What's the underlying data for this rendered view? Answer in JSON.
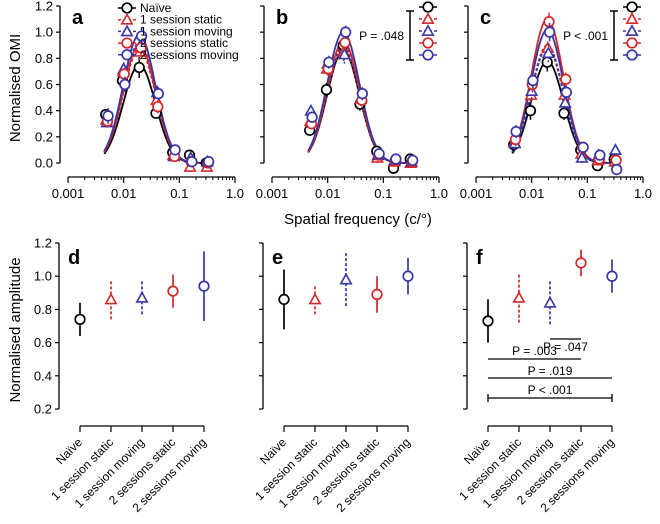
{
  "colors": {
    "naive": "#000000",
    "static": "#d62828",
    "moving": "#3636a8",
    "static2": "#d62828",
    "moving2": "#3636a8"
  },
  "legend": [
    {
      "label": "Naïve",
      "marker": "circle",
      "color": "#000000",
      "dash": false
    },
    {
      "label": "1 session static",
      "marker": "triangle",
      "color": "#d62828",
      "dash": true
    },
    {
      "label": "1 session moving",
      "marker": "triangle",
      "color": "#3636a8",
      "dash": true
    },
    {
      "label": "2 sessions static",
      "marker": "circle",
      "color": "#d62828",
      "dash": false
    },
    {
      "label": "2 sessions moving",
      "marker": "circle",
      "color": "#3636a8",
      "dash": false
    }
  ],
  "top_xlabel": "Spatial frequency (c/°)",
  "top_ylabel": "Normalised OMI",
  "bottom_ylabel": "Normalised amplitude",
  "chart_data": [
    {
      "panel": "a",
      "type": "line",
      "xscale": "log",
      "xlim": [
        0.001,
        1.0
      ],
      "ylim": [
        0,
        1.2
      ],
      "xticks": [
        "0.001",
        "0.01",
        "0.1",
        "1.0"
      ],
      "yticks": [
        "0.0",
        "0.2",
        "0.4",
        "0.6",
        "0.8",
        "1.0",
        "1.2"
      ],
      "x": [
        0.005,
        0.01,
        0.02,
        0.04,
        0.08,
        0.16,
        0.32
      ],
      "series": [
        {
          "name": "Naïve",
          "values": [
            0.37,
            0.63,
            0.73,
            0.38,
            0.08,
            0.06,
            0.0
          ],
          "err": [
            0.04,
            0.06,
            0.08,
            0.04,
            0.04,
            0.03,
            0.03
          ],
          "peak": 0.75
        },
        {
          "name": "1 session static",
          "values": [
            0.33,
            0.7,
            0.85,
            0.48,
            0.06,
            -0.03,
            -0.03
          ],
          "err": [
            0.04,
            0.05,
            0.06,
            0.05,
            0.04,
            0.03,
            0.03
          ],
          "peak": 0.87
        },
        {
          "name": "1 session moving",
          "values": [
            0.31,
            0.72,
            0.9,
            0.54,
            0.05,
            0.04,
            0.01
          ],
          "err": [
            0.04,
            0.05,
            0.06,
            0.05,
            0.04,
            0.03,
            0.03
          ],
          "peak": 0.92
        },
        {
          "name": "2 sessions static",
          "values": [
            0.32,
            0.68,
            0.88,
            0.43,
            0.05,
            0.01,
            0.0
          ],
          "err": [
            0.04,
            0.05,
            0.06,
            0.05,
            0.04,
            0.03,
            0.03
          ],
          "peak": 0.9
        },
        {
          "name": "2 sessions moving",
          "values": [
            0.36,
            0.6,
            0.97,
            0.53,
            0.1,
            0.01,
            0.01
          ],
          "err": [
            0.06,
            0.06,
            0.07,
            0.05,
            0.04,
            0.03,
            0.03
          ],
          "peak": 0.98
        }
      ]
    },
    {
      "panel": "b",
      "type": "line",
      "xscale": "log",
      "xlim": [
        0.001,
        1.0
      ],
      "ylim": [
        0,
        1.2
      ],
      "xticks": [
        "0.001",
        "0.01",
        "0.1",
        "1.0"
      ],
      "x": [
        0.005,
        0.01,
        0.02,
        0.04,
        0.08,
        0.16,
        0.32
      ],
      "annotation": "P = .048",
      "series": [
        {
          "name": "Naïve",
          "values": [
            0.25,
            0.56,
            0.9,
            0.45,
            0.09,
            -0.04,
            0.03
          ],
          "err": [
            0.04,
            0.05,
            0.06,
            0.05,
            0.04,
            0.04,
            0.04
          ],
          "peak": 0.86
        },
        {
          "name": "1 session static",
          "values": [
            0.32,
            0.72,
            0.85,
            0.49,
            0.04,
            0.01,
            0.0
          ],
          "err": [
            0.04,
            0.05,
            0.07,
            0.05,
            0.04,
            0.04,
            0.03
          ],
          "peak": 0.88
        },
        {
          "name": "1 session moving",
          "values": [
            0.4,
            0.76,
            0.83,
            0.5,
            0.06,
            0.02,
            0.01
          ],
          "err": [
            0.04,
            0.05,
            0.07,
            0.05,
            0.04,
            0.04,
            0.03
          ],
          "peak": 0.9
        },
        {
          "name": "2 sessions static",
          "values": [
            0.3,
            0.72,
            0.92,
            0.48,
            0.06,
            0.02,
            0.01
          ],
          "err": [
            0.04,
            0.05,
            0.06,
            0.05,
            0.04,
            0.04,
            0.03
          ],
          "peak": 0.93
        },
        {
          "name": "2 sessions moving",
          "values": [
            0.35,
            0.77,
            1.0,
            0.53,
            0.07,
            0.03,
            0.02
          ],
          "err": [
            0.04,
            0.05,
            0.05,
            0.05,
            0.04,
            0.04,
            0.03
          ],
          "peak": 1.0
        }
      ]
    },
    {
      "panel": "c",
      "type": "line",
      "xscale": "log",
      "xlim": [
        0.001,
        1.0
      ],
      "ylim": [
        0,
        1.2
      ],
      "xticks": [
        "0.001",
        "0.01",
        "0.1",
        "1.0"
      ],
      "x": [
        0.005,
        0.01,
        0.02,
        0.04,
        0.08,
        0.16,
        0.32
      ],
      "annotation": "P < .001",
      "series": [
        {
          "name": "Naïve",
          "values": [
            0.14,
            0.4,
            0.77,
            0.38,
            0.1,
            -0.02,
            0.03
          ],
          "err": [
            0.05,
            0.07,
            0.07,
            0.05,
            0.04,
            0.04,
            0.04
          ],
          "peak": 0.78
        },
        {
          "name": "1 session static",
          "values": [
            0.16,
            0.52,
            0.88,
            0.52,
            0.07,
            0.02,
            0.01
          ],
          "err": [
            0.05,
            0.06,
            0.06,
            0.05,
            0.04,
            0.04,
            0.04
          ],
          "peak": 0.9
        },
        {
          "name": "1 session moving",
          "values": [
            0.15,
            0.55,
            0.84,
            0.46,
            0.04,
            0.06,
            0.1
          ],
          "err": [
            0.05,
            0.06,
            0.07,
            0.05,
            0.04,
            0.04,
            0.04
          ],
          "peak": 0.88
        },
        {
          "name": "2 sessions static",
          "values": [
            0.18,
            0.6,
            1.08,
            0.64,
            0.12,
            0.03,
            0.02
          ],
          "err": [
            0.05,
            0.06,
            0.07,
            0.05,
            0.04,
            0.04,
            0.04
          ],
          "peak": 1.1
        },
        {
          "name": "2 sessions moving",
          "values": [
            0.24,
            0.63,
            1.0,
            0.54,
            0.12,
            0.06,
            -0.05
          ],
          "err": [
            0.05,
            0.06,
            0.07,
            0.05,
            0.04,
            0.04,
            0.04
          ],
          "peak": 1.02
        }
      ]
    },
    {
      "panel": "d",
      "type": "scatter",
      "ylim": [
        0.2,
        1.2
      ],
      "yticks": [
        "0.2",
        "0.4",
        "0.6",
        "0.8",
        "1.0",
        "1.2"
      ],
      "categories": [
        "Naïve",
        "1 session static",
        "1 session moving",
        "2 sessions static",
        "2 sessions moving"
      ],
      "values": [
        0.74,
        0.86,
        0.87,
        0.91,
        0.94
      ],
      "lo": [
        0.64,
        0.74,
        0.77,
        0.81,
        0.73
      ],
      "hi": [
        0.84,
        0.98,
        0.98,
        1.01,
        1.15
      ]
    },
    {
      "panel": "e",
      "type": "scatter",
      "ylim": [
        0.2,
        1.2
      ],
      "categories": [
        "Naïve",
        "1 session static",
        "1 session moving",
        "2 sessions static",
        "2 sessions moving"
      ],
      "values": [
        0.86,
        0.86,
        0.98,
        0.89,
        1.0
      ],
      "lo": [
        0.68,
        0.77,
        0.82,
        0.78,
        0.89
      ],
      "hi": [
        1.04,
        0.95,
        1.14,
        1.0,
        1.11
      ]
    },
    {
      "panel": "f",
      "type": "scatter",
      "ylim": [
        0.2,
        1.2
      ],
      "categories": [
        "Naïve",
        "1 session static",
        "1 session moving",
        "2 sessions static",
        "2 sessions moving"
      ],
      "values": [
        0.73,
        0.87,
        0.84,
        1.08,
        1.0
      ],
      "lo": [
        0.6,
        0.72,
        0.71,
        1.0,
        0.9
      ],
      "hi": [
        0.86,
        1.02,
        0.97,
        1.16,
        1.1
      ],
      "comparisons": [
        {
          "from": 2,
          "to": 3,
          "label": "P = .047"
        },
        {
          "from": 0,
          "to": 3,
          "label": "P = .003"
        },
        {
          "from": 0,
          "to": 4,
          "label": "P = .019"
        },
        {
          "from": 0,
          "to": 4,
          "label": "P < .001"
        }
      ]
    }
  ]
}
